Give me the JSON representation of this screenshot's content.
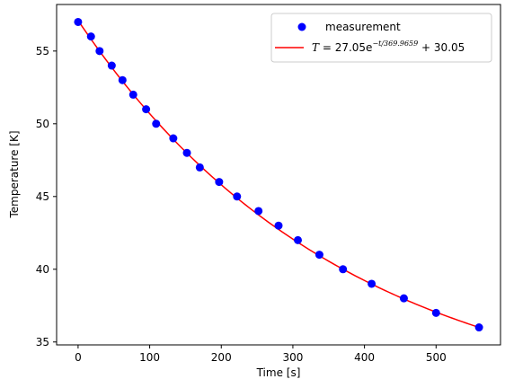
{
  "chart_data": {
    "type": "scatter",
    "title": "",
    "xlabel": "Time [s]",
    "ylabel": "Temperature [K]",
    "xlim": [
      -30,
      590
    ],
    "ylim": [
      34.8,
      58.2
    ],
    "x_ticks": [
      0,
      100,
      200,
      300,
      400,
      500
    ],
    "y_ticks": [
      35,
      40,
      45,
      50,
      55
    ],
    "grid": false,
    "legend_position": "top-right",
    "series": [
      {
        "name": "measurement",
        "kind": "scatter",
        "color": "#0000ff",
        "x": [
          0,
          18,
          30,
          47,
          62,
          77,
          95,
          109,
          133,
          152,
          170,
          197,
          222,
          252,
          280,
          307,
          337,
          370,
          410,
          455,
          500,
          560
        ],
        "y": [
          57,
          56,
          55,
          54,
          53,
          52,
          51,
          50,
          49,
          48,
          47,
          46,
          45,
          44,
          43,
          42,
          41,
          40,
          39,
          38,
          37,
          36
        ]
      },
      {
        "name": "T = 27.05e^(-t/369.9659) + 30.05",
        "kind": "fit-line",
        "color": "#ff0000",
        "amplitude": 27.05,
        "tau": 369.9659,
        "offset": 30.05,
        "x_range": [
          0,
          560
        ]
      }
    ],
    "legend": {
      "measurement_label": "measurement",
      "fit_label_prefix": "T",
      "fit_label_eq": " = 27.05e",
      "fit_label_exp": "−t/369.9659",
      "fit_label_suffix": " + 30.05"
    }
  }
}
